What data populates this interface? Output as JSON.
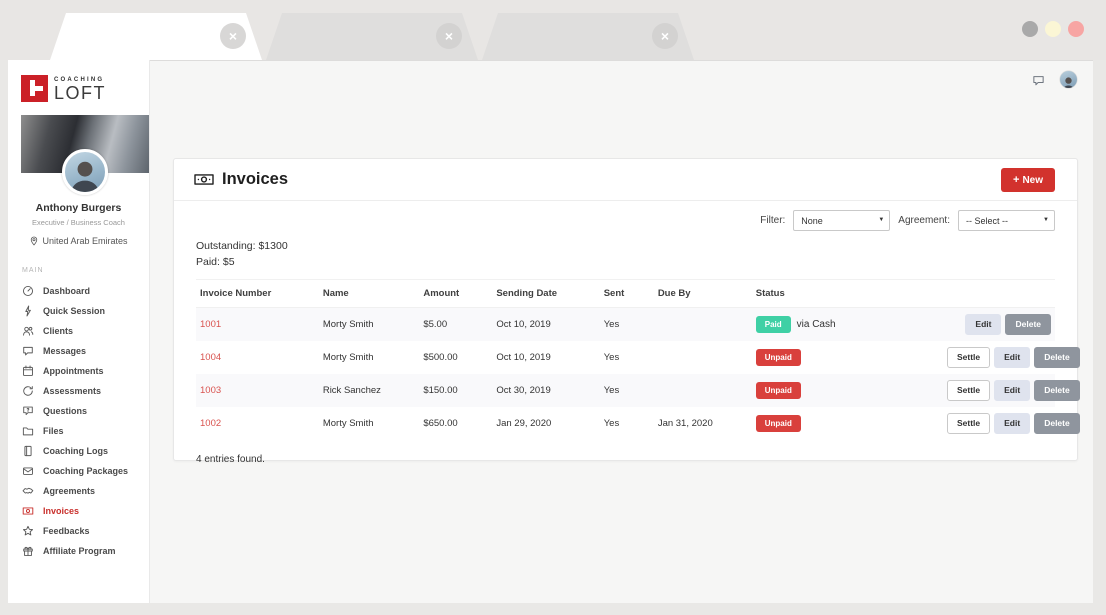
{
  "window": {
    "tabs": [
      {
        "name": "browser-tab-1",
        "active": true
      },
      {
        "name": "browser-tab-2",
        "active": false
      },
      {
        "name": "browser-tab-3",
        "active": false
      }
    ],
    "controls": [
      {
        "name": "window-control-minimize",
        "color": "#a9a9a9"
      },
      {
        "name": "window-control-maximize",
        "color": "#fbf6d5"
      },
      {
        "name": "window-control-close",
        "color": "#f7a5a3"
      }
    ]
  },
  "sidebar": {
    "logo": {
      "top": "COACHING",
      "bottom": "LOFT"
    },
    "profile": {
      "name": "Anthony Burgers",
      "role": "Executive / Business Coach",
      "location": "United Arab Emirates"
    },
    "section_label": "MAIN",
    "menu": [
      {
        "label": "Dashboard",
        "icon": "dashboard",
        "active": false
      },
      {
        "label": "Quick Session",
        "icon": "bolt",
        "active": false
      },
      {
        "label": "Clients",
        "icon": "users",
        "active": false
      },
      {
        "label": "Messages",
        "icon": "chat",
        "active": false
      },
      {
        "label": "Appointments",
        "icon": "calendar",
        "active": false
      },
      {
        "label": "Assessments",
        "icon": "refresh",
        "active": false
      },
      {
        "label": "Questions",
        "icon": "question",
        "active": false
      },
      {
        "label": "Files",
        "icon": "folder",
        "active": false
      },
      {
        "label": "Coaching Logs",
        "icon": "book",
        "active": false
      },
      {
        "label": "Coaching Packages",
        "icon": "envelope",
        "active": false
      },
      {
        "label": "Agreements",
        "icon": "handshake",
        "active": false
      },
      {
        "label": "Invoices",
        "icon": "banknote",
        "active": true
      },
      {
        "label": "Feedbacks",
        "icon": "star",
        "active": false
      },
      {
        "label": "Affiliate Program",
        "icon": "gift",
        "active": false
      }
    ]
  },
  "main": {
    "title": "Invoices",
    "new_button": {
      "plus": "+",
      "label": "New"
    },
    "filters": {
      "filter_label": "Filter:",
      "filter_value": "None",
      "agreement_label": "Agreement:",
      "agreement_value": "-- Select --"
    },
    "summary": {
      "outstanding": "Outstanding: $1300",
      "paid": "Paid: $5"
    },
    "table": {
      "columns": [
        "Invoice Number",
        "Name",
        "Amount",
        "Sending Date",
        "Sent",
        "Due By",
        "Status",
        ""
      ],
      "rows": [
        {
          "invoice_number": "1001",
          "name": "Morty Smith",
          "amount": "$5.00",
          "sending_date": "Oct 10, 2019",
          "sent": "Yes",
          "due_by": "",
          "status": "Paid",
          "status_note": "via Cash",
          "actions": [
            "Edit",
            "Delete"
          ]
        },
        {
          "invoice_number": "1004",
          "name": "Morty Smith",
          "amount": "$500.00",
          "sending_date": "Oct 10, 2019",
          "sent": "Yes",
          "due_by": "",
          "status": "Unpaid",
          "status_note": "",
          "actions": [
            "Settle",
            "Edit",
            "Delete"
          ]
        },
        {
          "invoice_number": "1003",
          "name": "Rick Sanchez",
          "amount": "$150.00",
          "sending_date": "Oct 30, 2019",
          "sent": "Yes",
          "due_by": "",
          "status": "Unpaid",
          "status_note": "",
          "actions": [
            "Settle",
            "Edit",
            "Delete"
          ]
        },
        {
          "invoice_number": "1002",
          "name": "Morty Smith",
          "amount": "$650.00",
          "sending_date": "Jan 29, 2020",
          "sent": "Yes",
          "due_by": "Jan 31, 2020",
          "status": "Unpaid",
          "status_note": "",
          "actions": [
            "Settle",
            "Edit",
            "Delete"
          ]
        }
      ]
    },
    "entries_text": "4 entries found."
  },
  "colors": {
    "accent_red": "#d2322d",
    "paid_green": "#3fd0a5",
    "unpaid_red": "#d9403c",
    "active_menu_red": "#c9302c",
    "logo_red": "#cb2027"
  }
}
